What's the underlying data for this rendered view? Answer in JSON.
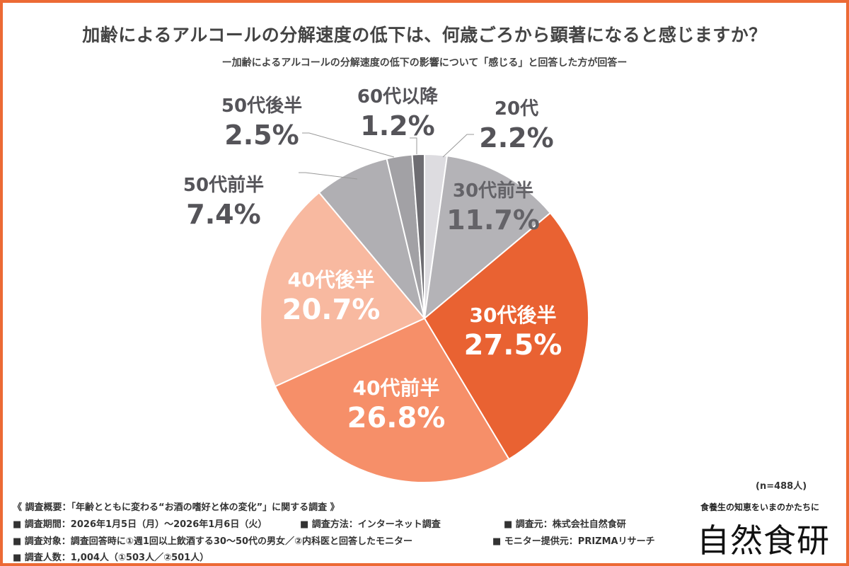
{
  "chart_data": {
    "type": "pie",
    "title": "加齢によるアルコールの分解速度の低下は、何歳ごろから顕著になると感じますか？",
    "subtitle": "ー加齢によるアルコールの分解速度の低下の影響について「感じる」と回答した方が回答ー",
    "start": "12 o'clock, clockwise",
    "slices": [
      {
        "label": "20代",
        "value": 2.2,
        "display": "2.2%",
        "color": "#dddce0",
        "label_position": "outside",
        "text_color": "#555459"
      },
      {
        "label": "30代前半",
        "value": 11.7,
        "display": "11.7%",
        "color": "#b4b3b7",
        "label_position": "inside",
        "text_color": "#646368"
      },
      {
        "label": "30代後半",
        "value": 27.5,
        "display": "27.5%",
        "color": "#e96232",
        "label_position": "inside",
        "text_color": "#ffffff"
      },
      {
        "label": "40代前半",
        "value": 26.8,
        "display": "26.8%",
        "color": "#f68f69",
        "label_position": "inside",
        "text_color": "#ffffff"
      },
      {
        "label": "40代後半",
        "value": 20.7,
        "display": "20.7%",
        "color": "#f8b9a0",
        "label_position": "inside",
        "text_color": "#ffffff"
      },
      {
        "label": "50代前半",
        "value": 7.4,
        "display": "7.4%",
        "color": "#b0afb3",
        "label_position": "outside",
        "text_color": "#555459"
      },
      {
        "label": "50代後半",
        "value": 2.5,
        "display": "2.5%",
        "color": "#a2a1a5",
        "label_position": "outside",
        "text_color": "#555459"
      },
      {
        "label": "60代以降",
        "value": 1.2,
        "display": "1.2%",
        "color": "#6e6d72",
        "label_position": "outside",
        "text_color": "#555459"
      }
    ],
    "n": "(n=488人)"
  },
  "footer": {
    "overview": "《 調査概要：「年齢とともに変わる“お酒の嗜好と体の変化”」に関する調査 》",
    "period": "■ 調査期間：2026年1月5日（月）～2026年1月6日（火）",
    "method": "■ 調査方法：インターネット調査",
    "source": "■ 調査元：株式会社自然食研",
    "target": "■ 調査対象：調査回答時に①週1回以上飲酒する30～50代の男女／②内科医と回答したモニター",
    "provider": "■ モニター提供元：PRIZMAリサーチ",
    "count": "■ 調査人数：1,004人（①503人／②501人）"
  },
  "brand": {
    "tagline": "食養生の知恵をいまのかたちに",
    "logo": "自然食研"
  },
  "colors": {
    "border": "#ec6a35",
    "text": "#444444"
  }
}
